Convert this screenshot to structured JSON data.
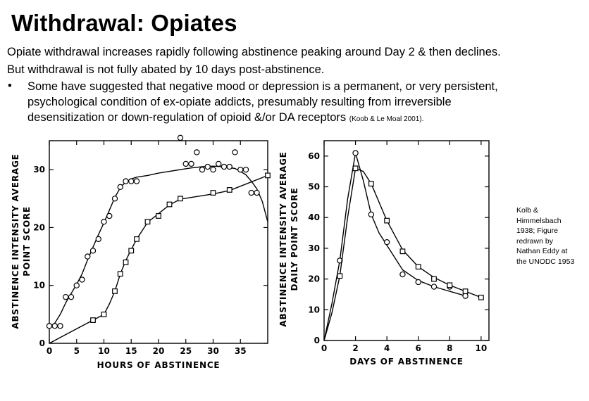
{
  "slide": {
    "title": "Withdrawal: Opiates",
    "lines": [
      "Opiate withdrawal increases rapidly following abstinence peaking around Day 2 & then declines.",
      "But withdrawal is not fully abated by 10 days post-abstinence."
    ],
    "bullet": {
      "symbol": "•",
      "lines": [
        "Some have suggested that negative mood or depression is a permanent, or very persistent,",
        "psychological condition of ex-opiate addicts, presumably resulting from irreversible",
        "desensitization or down-regulation of opioid &/or DA receptors "
      ],
      "citation": "(Koob & Le Moal 2001)."
    },
    "credit": [
      "Kolb &",
      "Himmelsbach",
      "1938; Figure",
      "redrawn by",
      "Nathan Eddy at",
      "the UNODC  1953"
    ]
  },
  "chart_data": [
    {
      "type": "scatter",
      "xlabel": "HOURS OF ABSTINENCE",
      "ylabel": [
        "ABSTINENCE INTENSITY AVERAGE",
        "POINT SCORE"
      ],
      "xlim": [
        0,
        40
      ],
      "ylim": [
        0,
        35
      ],
      "xticks": [
        0,
        5,
        10,
        15,
        20,
        25,
        30,
        35
      ],
      "yticks": [
        0,
        10,
        20,
        30
      ],
      "series": [
        {
          "marker": "circle",
          "x": [
            0,
            1,
            2,
            3,
            4,
            5,
            6,
            7,
            8,
            9,
            10,
            11,
            12,
            13,
            14,
            15,
            16,
            24,
            25,
            26,
            27,
            28,
            29,
            30,
            31,
            32,
            33,
            34,
            35,
            36,
            37,
            38
          ],
          "y": [
            3,
            3,
            3,
            8,
            8,
            10,
            11,
            15,
            16,
            18,
            21,
            22,
            25,
            27,
            28,
            28,
            28,
            35.5,
            31,
            31,
            33,
            30,
            30.5,
            30,
            31,
            30.5,
            30.5,
            33,
            30,
            30,
            26,
            26
          ],
          "curve_x": [
            0,
            1,
            2,
            3,
            4,
            5,
            6,
            7,
            8,
            9,
            10,
            11,
            12,
            13,
            14,
            15,
            16,
            18,
            20,
            22,
            24,
            26,
            28,
            30,
            32,
            34,
            35,
            36,
            37,
            38,
            39,
            40
          ],
          "curve_y": [
            2.8,
            3.5,
            5,
            7,
            8.6,
            10.2,
            12,
            14.4,
            16.6,
            18.8,
            20.8,
            23,
            25.2,
            26.9,
            27.9,
            28.4,
            28.7,
            29,
            29.4,
            29.7,
            30,
            30.3,
            30.5,
            30.6,
            30.5,
            30.2,
            29.7,
            29.1,
            28,
            26.7,
            24.5,
            21
          ]
        },
        {
          "marker": "square",
          "x": [
            8,
            10,
            12,
            13,
            14,
            15,
            16,
            18,
            20,
            22,
            24,
            30,
            33,
            40
          ],
          "y": [
            4,
            5,
            9,
            12,
            14,
            16,
            18,
            21,
            22,
            24,
            25,
            26,
            26.5,
            29
          ],
          "curve_x": [
            0,
            4,
            8,
            10,
            11,
            12,
            13,
            14,
            15,
            16,
            18,
            20,
            22,
            24,
            30,
            33,
            40
          ],
          "curve_y": [
            0,
            2,
            4,
            5,
            6.8,
            9,
            12,
            14.3,
            16.2,
            18,
            20.9,
            22.4,
            23.9,
            24.9,
            25.8,
            26.4,
            29
          ]
        }
      ]
    },
    {
      "type": "line",
      "xlabel": "DAYS OF ABSTINENCE",
      "ylabel": [
        "ABSTINENCE INTENSITY AVERAGE",
        "DAILY POINT SCORE"
      ],
      "xlim": [
        0,
        10.5
      ],
      "ylim": [
        0,
        65
      ],
      "xticks": [
        0,
        2,
        4,
        6,
        8,
        10
      ],
      "yticks": [
        0,
        10,
        20,
        30,
        40,
        50,
        60
      ],
      "series": [
        {
          "marker": "circle",
          "x": [
            1,
            2,
            3,
            4,
            5,
            6,
            7,
            8,
            9
          ],
          "y": [
            26,
            61,
            41,
            32,
            21.5,
            19,
            17.5,
            17.5,
            14.5
          ],
          "curve_x": [
            0,
            0.5,
            1,
            1.5,
            2,
            2.5,
            3,
            3.5,
            4,
            5,
            6,
            7,
            8,
            9
          ],
          "curve_y": [
            0,
            12,
            26,
            46,
            61,
            52,
            41,
            35,
            31,
            23,
            19.5,
            17.5,
            16,
            14.5
          ]
        },
        {
          "marker": "square",
          "x": [
            1,
            2,
            3,
            4,
            5,
            6,
            7,
            8,
            9,
            10
          ],
          "y": [
            21,
            56,
            51,
            39,
            29,
            24,
            20,
            18,
            16,
            14
          ],
          "curve_x": [
            0,
            0.5,
            1,
            1.5,
            2,
            2.5,
            3,
            3.5,
            4,
            5,
            6,
            7,
            8,
            9,
            10
          ],
          "curve_y": [
            0,
            9,
            21,
            40,
            56,
            55,
            51,
            45,
            39,
            29.5,
            24,
            20.5,
            18,
            16,
            14
          ]
        }
      ]
    }
  ]
}
